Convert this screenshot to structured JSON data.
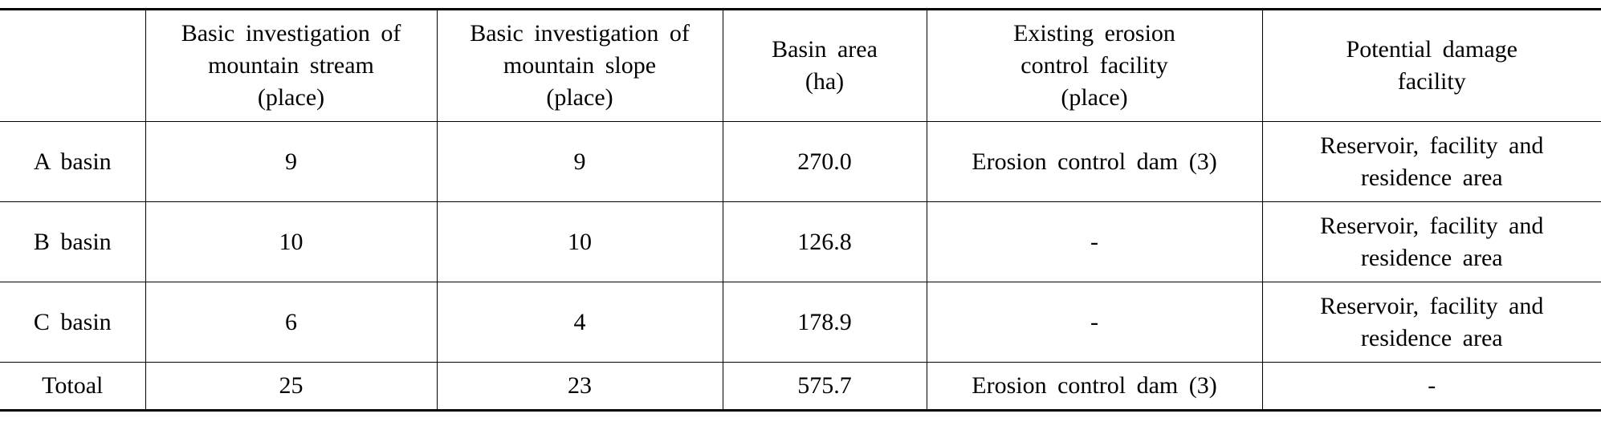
{
  "table": {
    "header": [
      [
        "Basic investigation of",
        "mountain stream",
        "(place)"
      ],
      [
        "Basic investigation of",
        "mountain slope",
        "(place)"
      ],
      [
        "Basin area",
        "(ha)"
      ],
      [
        "Existing erosion",
        "control facility",
        "(place)"
      ],
      [
        "Potential damage",
        "facility"
      ]
    ],
    "rows": [
      [
        "A basin",
        "9",
        "9",
        "270.0",
        "Erosion control dam (3)",
        [
          "Reservoir, facility and",
          "residence area"
        ]
      ],
      [
        "B basin",
        "10",
        "10",
        "126.8",
        "-",
        [
          "Reservoir, facility and",
          "residence area"
        ]
      ],
      [
        "C basin",
        "6",
        "4",
        "178.9",
        "-",
        [
          "Reservoir, facility and",
          "residence area"
        ]
      ],
      [
        "Totoal",
        "25",
        "23",
        "575.7",
        "Erosion control dam (3)",
        "-"
      ]
    ]
  }
}
